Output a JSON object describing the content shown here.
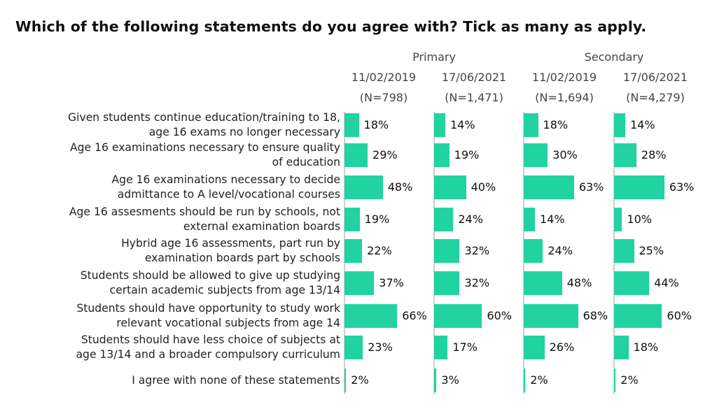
{
  "title": "Which of the following statements do you agree with? Tick as many as apply.",
  "accent_color": "#22d3a2",
  "groups": [
    {
      "name": "Primary"
    },
    {
      "name": "Secondary"
    }
  ],
  "columns": [
    {
      "group": "Primary",
      "date": "11/02/2019",
      "n": "(N=798)"
    },
    {
      "group": "Primary",
      "date": "17/06/2021",
      "n": "(N=1,471)"
    },
    {
      "group": "Secondary",
      "date": "11/02/2019",
      "n": "(N=1,694)"
    },
    {
      "group": "Secondary",
      "date": "17/06/2021",
      "n": "(N=4,279)"
    }
  ],
  "chart_data": {
    "type": "bar",
    "orientation": "horizontal",
    "categories": [
      "Given students continue education/training to 18,\nage 16 exams no longer necessary",
      "Age 16 examinations necessary to ensure quality\nof education",
      "Age 16 examinations necessary to decide\nadmittance to A level/vocational courses",
      "Age 16 assesments should be run by schools, not\nexternal examination boards",
      "Hybrid age 16 assessments, part run by\nexamination boards part by schools",
      "Students should be allowed to give up studying\ncertain academic subjects from age 13/14",
      "Students should have opportunity to study work\nrelevant vocational subjects from age 14",
      "Students should have less choice of subjects at\nage 13/14 and a broader compulsory curriculum",
      "I agree with none of these statements"
    ],
    "series": [
      {
        "name": "Primary 11/02/2019 (N=798)",
        "values": [
          18,
          29,
          48,
          19,
          22,
          37,
          66,
          23,
          2
        ]
      },
      {
        "name": "Primary 17/06/2021 (N=1,471)",
        "values": [
          14,
          19,
          40,
          24,
          32,
          32,
          60,
          17,
          3
        ]
      },
      {
        "name": "Secondary 11/02/2019 (N=1,694)",
        "values": [
          18,
          30,
          63,
          14,
          24,
          48,
          68,
          26,
          2
        ]
      },
      {
        "name": "Secondary 17/06/2021 (N=4,279)",
        "values": [
          14,
          28,
          63,
          10,
          25,
          44,
          60,
          18,
          2
        ]
      }
    ],
    "value_suffix": "%",
    "xlim": [
      0,
      100
    ],
    "grid": false
  }
}
